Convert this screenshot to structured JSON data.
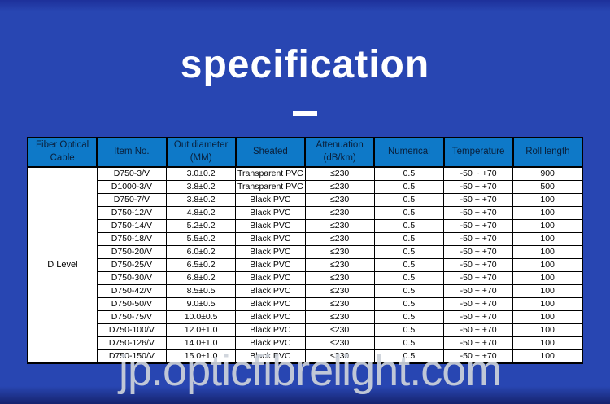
{
  "title": "specification",
  "watermark": "jp.opticfibrelight.com",
  "table": {
    "headers": [
      "Fiber Optical Cable",
      "Item No.",
      "Out diameter (MM)",
      "Sheated",
      "Attenuation (dB/km)",
      "Numerical",
      "Temperature",
      "Roll length"
    ],
    "group_label": "D Level",
    "rows": [
      [
        "D750-3/V",
        "3.0±0.2",
        "Transparent PVC",
        "≤230",
        "0.5",
        "-50 ~ +70",
        "900"
      ],
      [
        "D1000-3/V",
        "3.8±0.2",
        "Transparent PVC",
        "≤230",
        "0.5",
        "-50 ~ +70",
        "500"
      ],
      [
        "D750-7/V",
        "3.8±0.2",
        "Black PVC",
        "≤230",
        "0.5",
        "-50 ~ +70",
        "100"
      ],
      [
        "D750-12/V",
        "4.8±0.2",
        "Black PVC",
        "≤230",
        "0.5",
        "-50 ~ +70",
        "100"
      ],
      [
        "D750-14/V",
        "5.2±0.2",
        "Black PVC",
        "≤230",
        "0.5",
        "-50 ~ +70",
        "100"
      ],
      [
        "D750-18/V",
        "5.5±0.2",
        "Black PVC",
        "≤230",
        "0.5",
        "-50 ~ +70",
        "100"
      ],
      [
        "D750-20/V",
        "6.0±0.2",
        "Black PVC",
        "≤230",
        "0.5",
        "-50 ~ +70",
        "100"
      ],
      [
        "D750-25/V",
        "6.5±0.2",
        "Black PVC",
        "≤230",
        "0.5",
        "-50 ~ +70",
        "100"
      ],
      [
        "D750-30/V",
        "6.8±0.2",
        "Black PVC",
        "≤230",
        "0.5",
        "-50 ~ +70",
        "100"
      ],
      [
        "D750-42/V",
        "8.5±0.5",
        "Black PVC",
        "≤230",
        "0.5",
        "-50 ~ +70",
        "100"
      ],
      [
        "D750-50/V",
        "9.0±0.5",
        "Black PVC",
        "≤230",
        "0.5",
        "-50 ~ +70",
        "100"
      ],
      [
        "D750-75/V",
        "10.0±0.5",
        "Black PVC",
        "≤230",
        "0.5",
        "-50 ~ +70",
        "100"
      ],
      [
        "D750-100/V",
        "12.0±1.0",
        "Black PVC",
        "≤230",
        "0.5",
        "-50 ~ +70",
        "100"
      ],
      [
        "D750-126/V",
        "14.0±1.0",
        "Black PVC",
        "≤230",
        "0.5",
        "-50 ~ +70",
        "100"
      ],
      [
        "D750-150/V",
        "15.0±1.0",
        "Black PVC",
        "≤230",
        "0.5",
        "-50 ~ +70",
        "100"
      ]
    ]
  },
  "colors": {
    "background": "#2846b2",
    "header_bg": "#0e79c8",
    "header_text": "#0a1f3a",
    "cell_bg": "#ffffff",
    "border": "#000000",
    "title_text": "#ffffff",
    "watermark_text": "rgba(205,210,218,0.92)"
  }
}
